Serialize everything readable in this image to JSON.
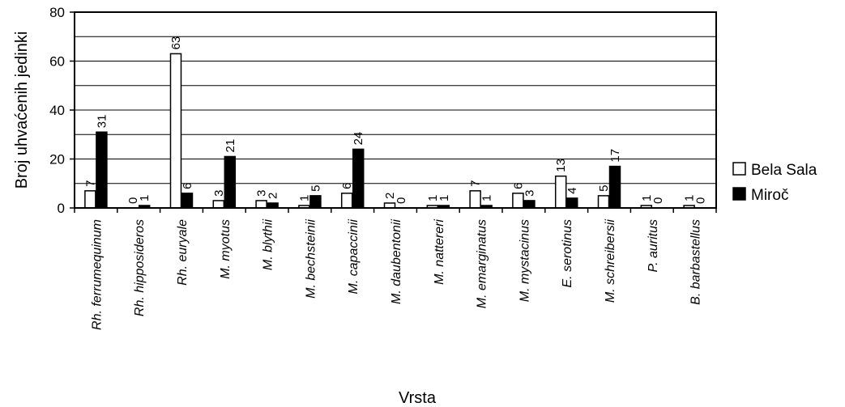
{
  "chart_data": {
    "type": "bar",
    "xlabel": "Vrsta",
    "ylabel": "Broj uhvaćenih jedinki",
    "ylim": [
      0,
      80
    ],
    "yticks": [
      0,
      20,
      40,
      60,
      80
    ],
    "grid": true,
    "legend_position": "right",
    "categories": [
      "Rh. ferrumequinum",
      "Rh. hipposideros",
      "Rh. euryale",
      "M. myotus",
      "M. blythii",
      "M. bechsteinii",
      "M. capaccinii",
      "M. daubentonii",
      "M. nattereri",
      "M. emarginatus",
      "M. mystacinus",
      "E. serotinus",
      "M. schreibersii",
      "P. auritus",
      "B. barbastellus"
    ],
    "series": [
      {
        "name": "Bela Sala",
        "color": "#ffffff",
        "values": [
          7,
          0,
          63,
          3,
          3,
          1,
          6,
          2,
          1,
          7,
          6,
          13,
          5,
          1,
          1
        ]
      },
      {
        "name": "Miroč",
        "color": "#000000",
        "values": [
          31,
          1,
          6,
          21,
          2,
          5,
          24,
          0,
          1,
          1,
          3,
          4,
          17,
          0,
          0
        ]
      }
    ]
  }
}
